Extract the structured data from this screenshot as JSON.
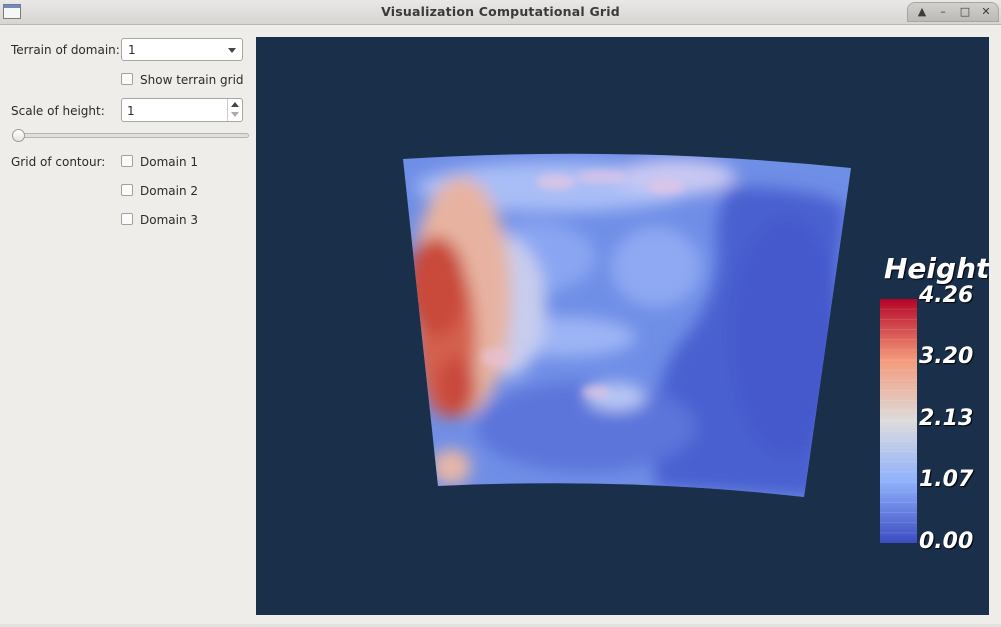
{
  "window": {
    "title": "Visualization Computational Grid"
  },
  "window_buttons": {
    "up": "▲",
    "minimize": "–",
    "maximize": "□",
    "close": "✕"
  },
  "controls": {
    "terrain_label": "Terrain of domain:",
    "terrain_value": "1",
    "show_terrain_grid_label": "Show terrain grid",
    "show_terrain_grid_checked": false,
    "scale_label": "Scale of height:",
    "scale_value": "1",
    "slider_level": 0,
    "grid_label": "Grid of contour:",
    "domains": [
      {
        "label": "Domain 1",
        "checked": false
      },
      {
        "label": "Domain 2",
        "checked": false
      },
      {
        "label": "Domain 3",
        "checked": false
      }
    ]
  },
  "viewport": {
    "background": "#1a2f4a",
    "legend": {
      "title": "Height",
      "ticks": [
        "4.26",
        "3.20",
        "2.13",
        "1.07",
        "0.00"
      ],
      "colors": [
        "#3b4cc0",
        "#8fb0fc",
        "#dddcdc",
        "#f49a7b",
        "#b40426"
      ]
    }
  }
}
